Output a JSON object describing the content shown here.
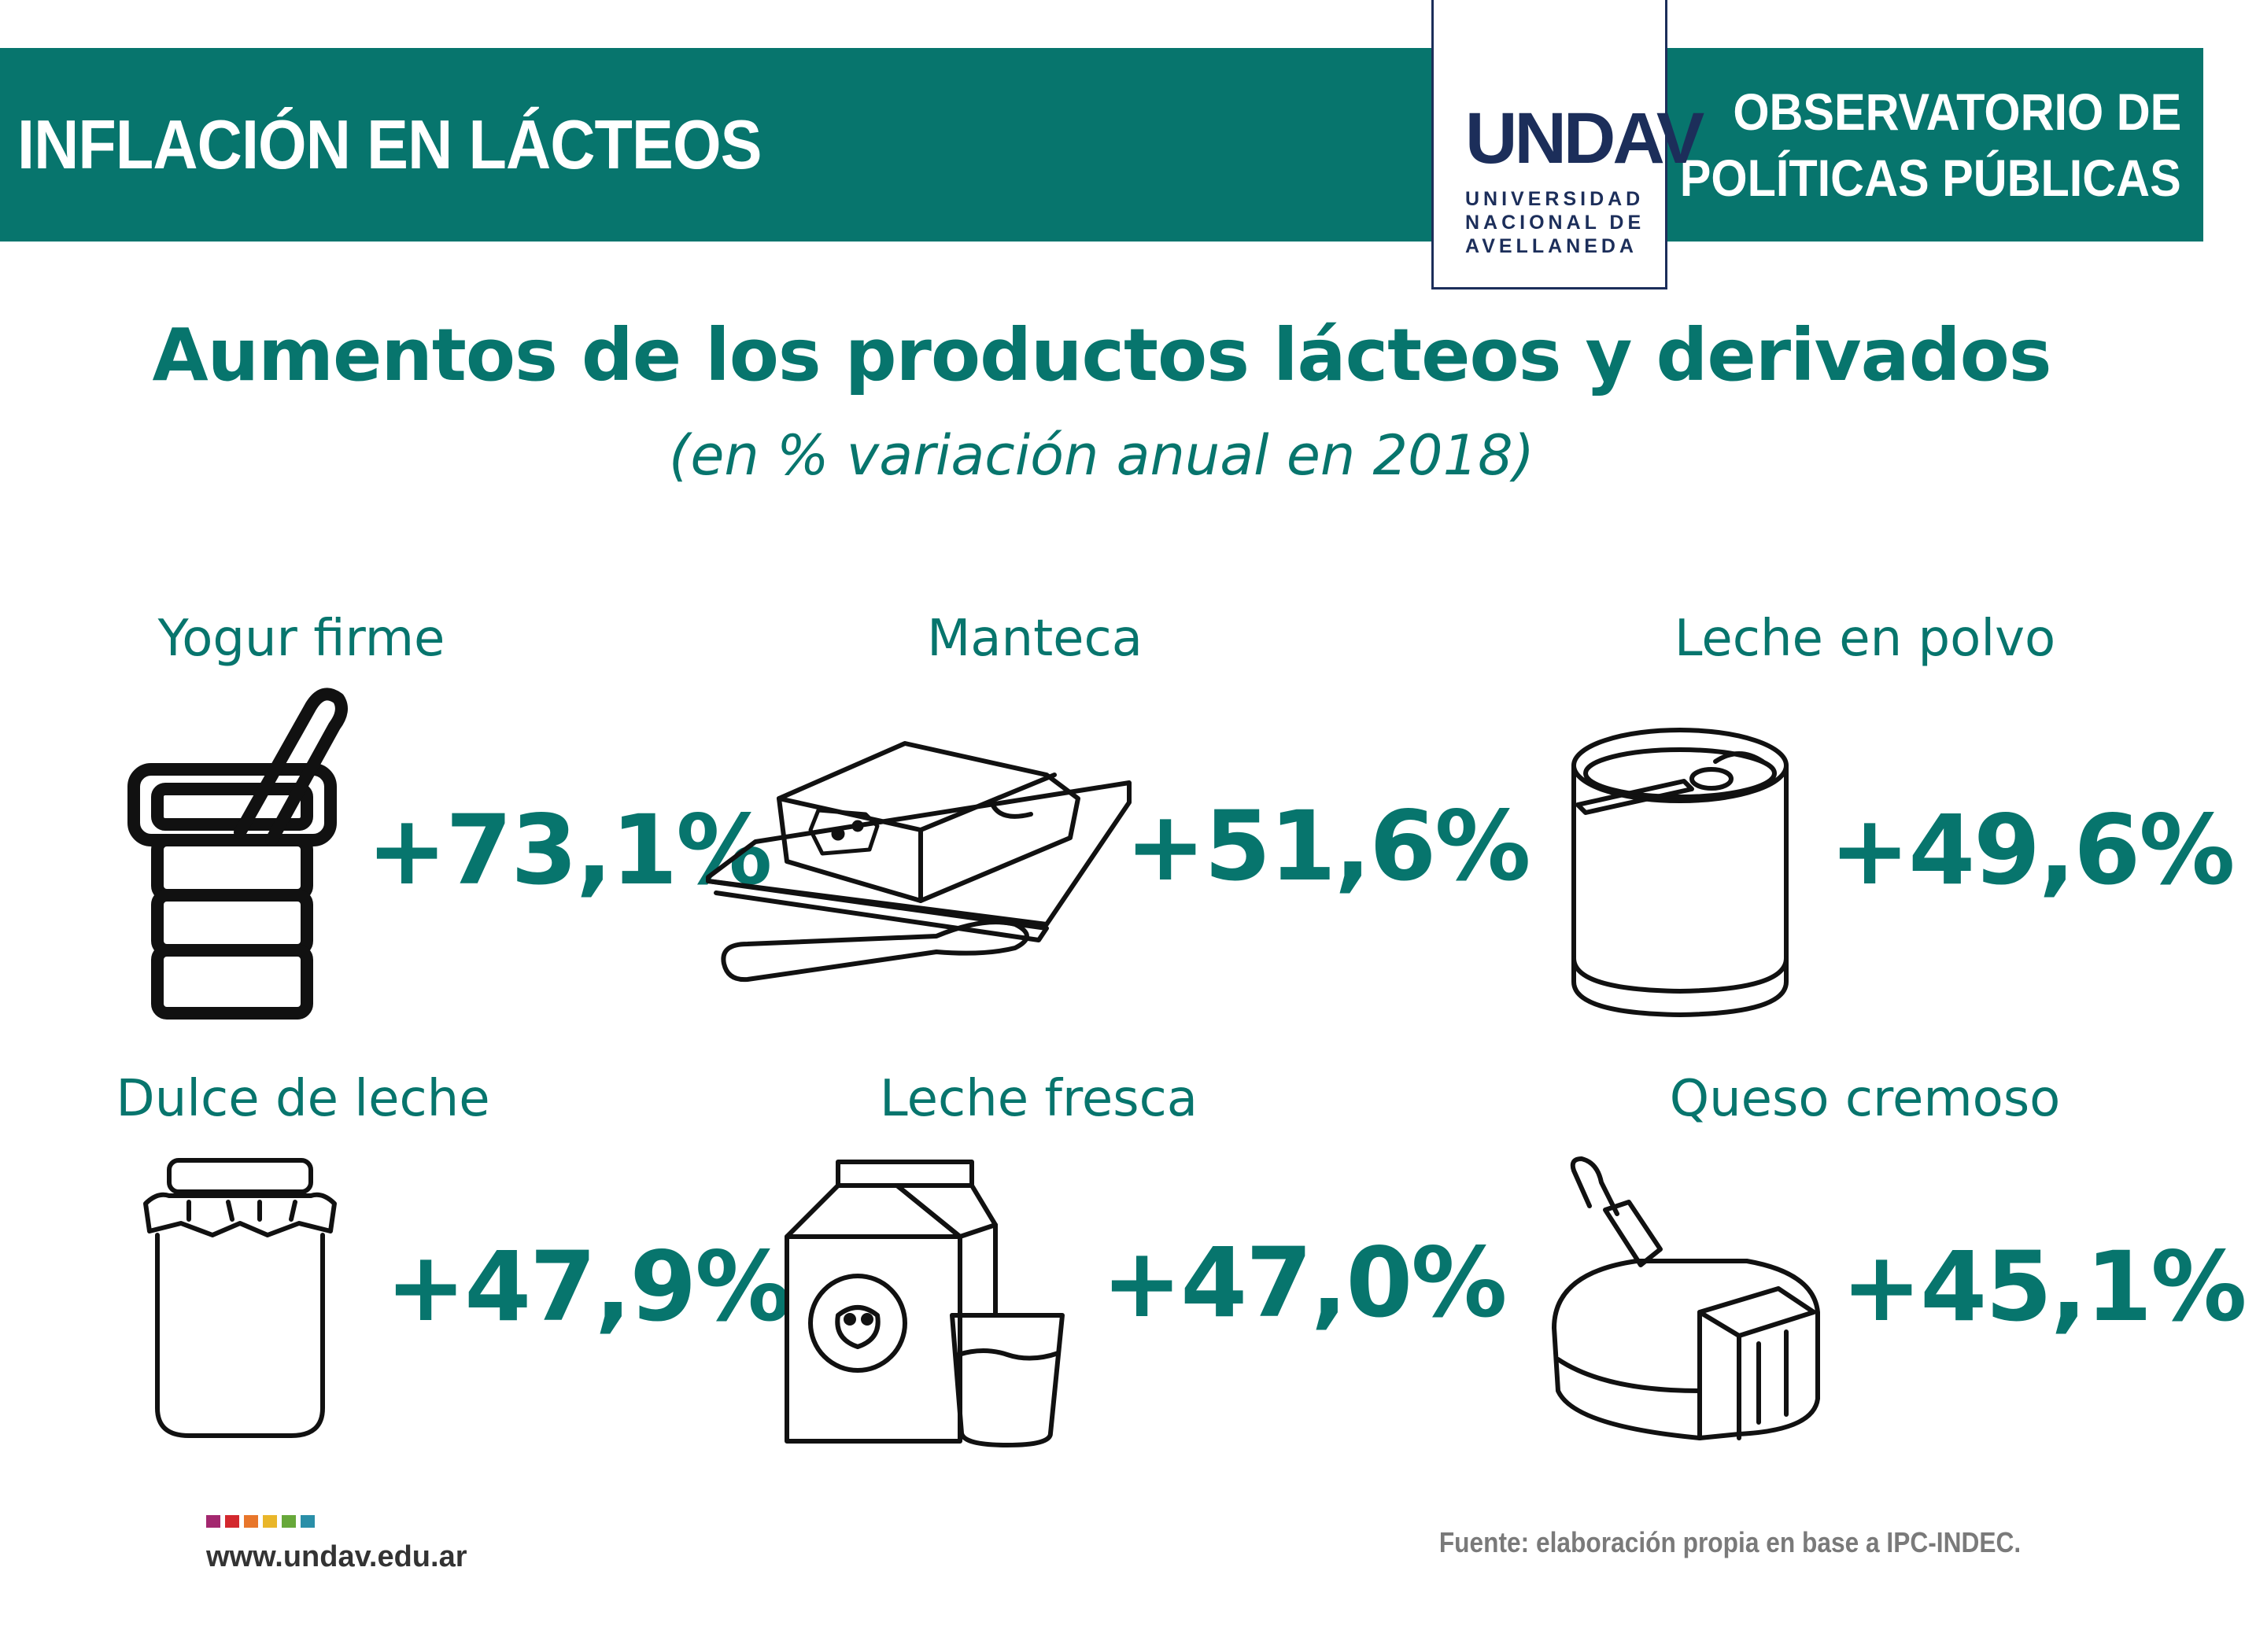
{
  "header": {
    "title": "INFLACIÓN EN LÁCTEOS",
    "right_line1": "OBSERVATORIO DE",
    "right_line2": "POLÍTICAS PÚBLICAS",
    "logo_mark": "UNDAV",
    "logo_line1": "UNIVERSIDAD",
    "logo_line2": "NACIONAL DE",
    "logo_line3": "AVELLANEDA"
  },
  "main": {
    "title": "Aumentos de los productos lácteos y derivados",
    "subtitle": "(en % variación anual en 2018)"
  },
  "products": [
    {
      "label": "Yogur firme",
      "value": "+73,1%",
      "icon": "yogurt-icon"
    },
    {
      "label": "Manteca",
      "value": "+51,6%",
      "icon": "butter-icon"
    },
    {
      "label": "Leche en polvo",
      "value": "+49,6%",
      "icon": "powdered-milk-icon"
    },
    {
      "label": "Dulce de leche",
      "value": "+47,9%",
      "icon": "jar-icon"
    },
    {
      "label": "Leche fresca",
      "value": "+47,0%",
      "icon": "milk-carton-icon"
    },
    {
      "label": "Queso cremoso",
      "value": "+45,1%",
      "icon": "cheese-icon"
    }
  ],
  "footer": {
    "url": "www.undav.edu.ar",
    "source": "Fuente: elaboración propia en base a IPC-INDEC.",
    "dot_colors": [
      "#a3286f",
      "#d3282e",
      "#e8762b",
      "#e9b62a",
      "#67a83a",
      "#2a8fa8"
    ]
  },
  "colors": {
    "accent": "#07756d",
    "logo": "#1c2e5a"
  }
}
